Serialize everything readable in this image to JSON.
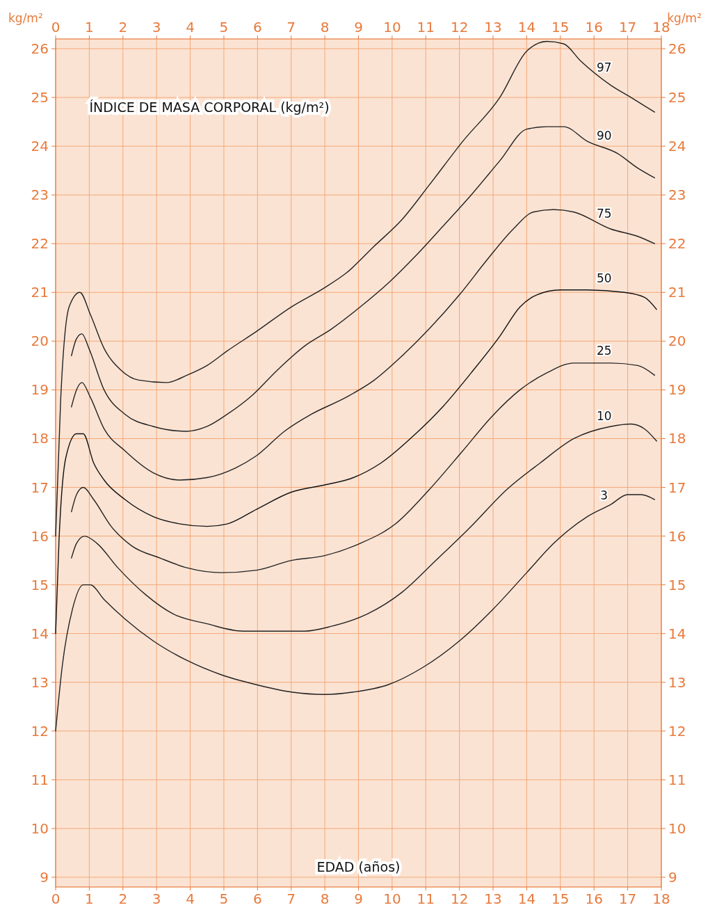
{
  "chart_data": {
    "type": "line",
    "title": "ÍNDICE DE MASA CORPORAL (kg/m²)",
    "xlabel": "EDAD (años)",
    "ylabel": "kg/m²",
    "y2label": "kg/m²",
    "xlim": [
      0,
      18
    ],
    "xticks": [
      0,
      1,
      2,
      3,
      4,
      5,
      6,
      7,
      8,
      9,
      10,
      11,
      12,
      13,
      14,
      15,
      16,
      17,
      18
    ],
    "x2lim": [
      0,
      18
    ],
    "x2ticks": [
      0,
      1,
      2,
      3,
      4,
      5,
      6,
      7,
      8,
      9,
      10,
      11,
      12,
      13,
      14,
      15,
      16,
      17,
      18
    ],
    "ylim": [
      8.8,
      26.2
    ],
    "yticks": [
      9,
      10,
      11,
      12,
      13,
      14,
      15,
      16,
      17,
      18,
      19,
      20,
      21,
      22,
      23,
      24,
      25,
      26
    ],
    "y2lim": [
      8.8,
      26.2
    ],
    "y2ticks": [
      9,
      10,
      11,
      12,
      13,
      14,
      15,
      16,
      17,
      18,
      19,
      20,
      21,
      22,
      23,
      24,
      25,
      26
    ],
    "grid": true,
    "series": [
      {
        "name": "97",
        "color": "#222222",
        "x": [
          0,
          0.15,
          0.4,
          0.72,
          1.03,
          1.44,
          1.95,
          2.47,
          3.3,
          3.9,
          4.5,
          5.1,
          5.97,
          7.0,
          8.0,
          8.64,
          9.47,
          10.3,
          11.1,
          12.1,
          13.2,
          14.0,
          14.6,
          15.1,
          15.6,
          16.5,
          17.1,
          17.8
        ],
        "values": [
          16.0,
          18.8,
          20.7,
          21.0,
          20.55,
          19.85,
          19.4,
          19.2,
          19.15,
          19.3,
          19.5,
          19.8,
          20.2,
          20.7,
          21.1,
          21.4,
          21.95,
          22.5,
          23.2,
          24.1,
          25.0,
          25.95,
          26.15,
          26.1,
          25.75,
          25.25,
          25.0,
          24.7
        ]
      },
      {
        "name": "90",
        "color": "#222222",
        "x": [
          0.47,
          0.62,
          0.78,
          0.99,
          1.44,
          2.06,
          2.9,
          3.9,
          4.5,
          5.1,
          5.86,
          6.58,
          7.4,
          8.2,
          9.05,
          9.9,
          10.7,
          11.5,
          12.35,
          13.2,
          14.0,
          14.6,
          15.1,
          15.8,
          16.7,
          17.3,
          17.8
        ],
        "values": [
          19.7,
          20.05,
          20.15,
          19.85,
          19.0,
          18.5,
          18.25,
          18.15,
          18.25,
          18.5,
          18.9,
          19.4,
          19.9,
          20.25,
          20.7,
          21.2,
          21.75,
          22.35,
          23.0,
          23.7,
          24.35,
          24.4,
          24.4,
          24.1,
          23.85,
          23.55,
          23.35
        ]
      },
      {
        "name": "75",
        "color": "#222222",
        "x": [
          0.47,
          0.62,
          0.78,
          1.03,
          1.44,
          2.06,
          2.9,
          3.7,
          4.5,
          5.35,
          5.97,
          6.8,
          7.6,
          8.64,
          9.47,
          10.3,
          11.1,
          12.0,
          12.8,
          13.6,
          14.2,
          14.8,
          15.4,
          16.5,
          17.3,
          17.8
        ],
        "values": [
          18.65,
          19.0,
          19.15,
          18.85,
          18.2,
          17.75,
          17.3,
          17.15,
          17.2,
          17.4,
          17.65,
          18.15,
          18.5,
          18.85,
          19.2,
          19.7,
          20.25,
          20.95,
          21.65,
          22.3,
          22.65,
          22.7,
          22.65,
          22.3,
          22.15,
          22.0
        ]
      },
      {
        "name": "50",
        "color": "#111111",
        "x": [
          0,
          0.1,
          0.3,
          0.62,
          0.82,
          1.13,
          1.44,
          2.06,
          2.9,
          3.7,
          4.5,
          5.1,
          5.97,
          7.0,
          8.0,
          8.85,
          9.67,
          10.7,
          11.5,
          12.35,
          13.2,
          13.8,
          14.3,
          15.0,
          15.8,
          16.9,
          17.5,
          17.86
        ],
        "values": [
          14.0,
          15.9,
          17.6,
          18.1,
          18.1,
          17.5,
          17.15,
          16.75,
          16.4,
          16.25,
          16.2,
          16.25,
          16.55,
          16.9,
          17.05,
          17.2,
          17.5,
          18.1,
          18.65,
          19.35,
          20.1,
          20.7,
          20.95,
          21.05,
          21.05,
          21.0,
          20.9,
          20.65
        ]
      },
      {
        "name": "25",
        "color": "#222222",
        "x": [
          0.47,
          0.62,
          0.82,
          1.13,
          1.65,
          2.26,
          3.1,
          3.9,
          4.94,
          5.97,
          7.0,
          8.0,
          9.05,
          10.1,
          11.1,
          12.1,
          12.96,
          13.8,
          14.6,
          15.4,
          16.5,
          17.3,
          17.8
        ],
        "values": [
          16.5,
          16.85,
          17.0,
          16.75,
          16.2,
          15.8,
          15.55,
          15.35,
          15.25,
          15.3,
          15.5,
          15.6,
          15.85,
          16.25,
          16.95,
          17.75,
          18.45,
          19.0,
          19.35,
          19.55,
          19.55,
          19.5,
          19.3
        ]
      },
      {
        "name": "10",
        "color": "#222222",
        "x": [
          0.47,
          0.62,
          0.86,
          1.23,
          1.85,
          2.67,
          3.5,
          4.5,
          5.56,
          6.6,
          7.4,
          8.2,
          9.26,
          10.3,
          11.3,
          12.35,
          13.4,
          14.4,
          15.4,
          16.5,
          17.1,
          17.5,
          17.86
        ],
        "values": [
          15.55,
          15.85,
          16.0,
          15.85,
          15.35,
          14.8,
          14.4,
          14.2,
          14.05,
          14.05,
          14.05,
          14.15,
          14.4,
          14.85,
          15.5,
          16.2,
          16.95,
          17.5,
          18.0,
          18.25,
          18.3,
          18.2,
          17.95
        ]
      },
      {
        "name": "3",
        "color": "#222222",
        "x": [
          0,
          0.2,
          0.5,
          0.82,
          1.03,
          1.44,
          2.06,
          2.9,
          3.9,
          4.94,
          5.97,
          7.0,
          8.0,
          8.85,
          9.88,
          10.9,
          12.0,
          13.0,
          14.0,
          14.8,
          15.8,
          16.5,
          17.0,
          17.4,
          17.8
        ],
        "values": [
          12.0,
          13.35,
          14.5,
          15.0,
          15.0,
          14.7,
          14.3,
          13.85,
          13.45,
          13.15,
          12.95,
          12.8,
          12.75,
          12.8,
          12.95,
          13.3,
          13.85,
          14.5,
          15.25,
          15.85,
          16.4,
          16.65,
          16.85,
          16.85,
          16.75
        ]
      }
    ]
  }
}
